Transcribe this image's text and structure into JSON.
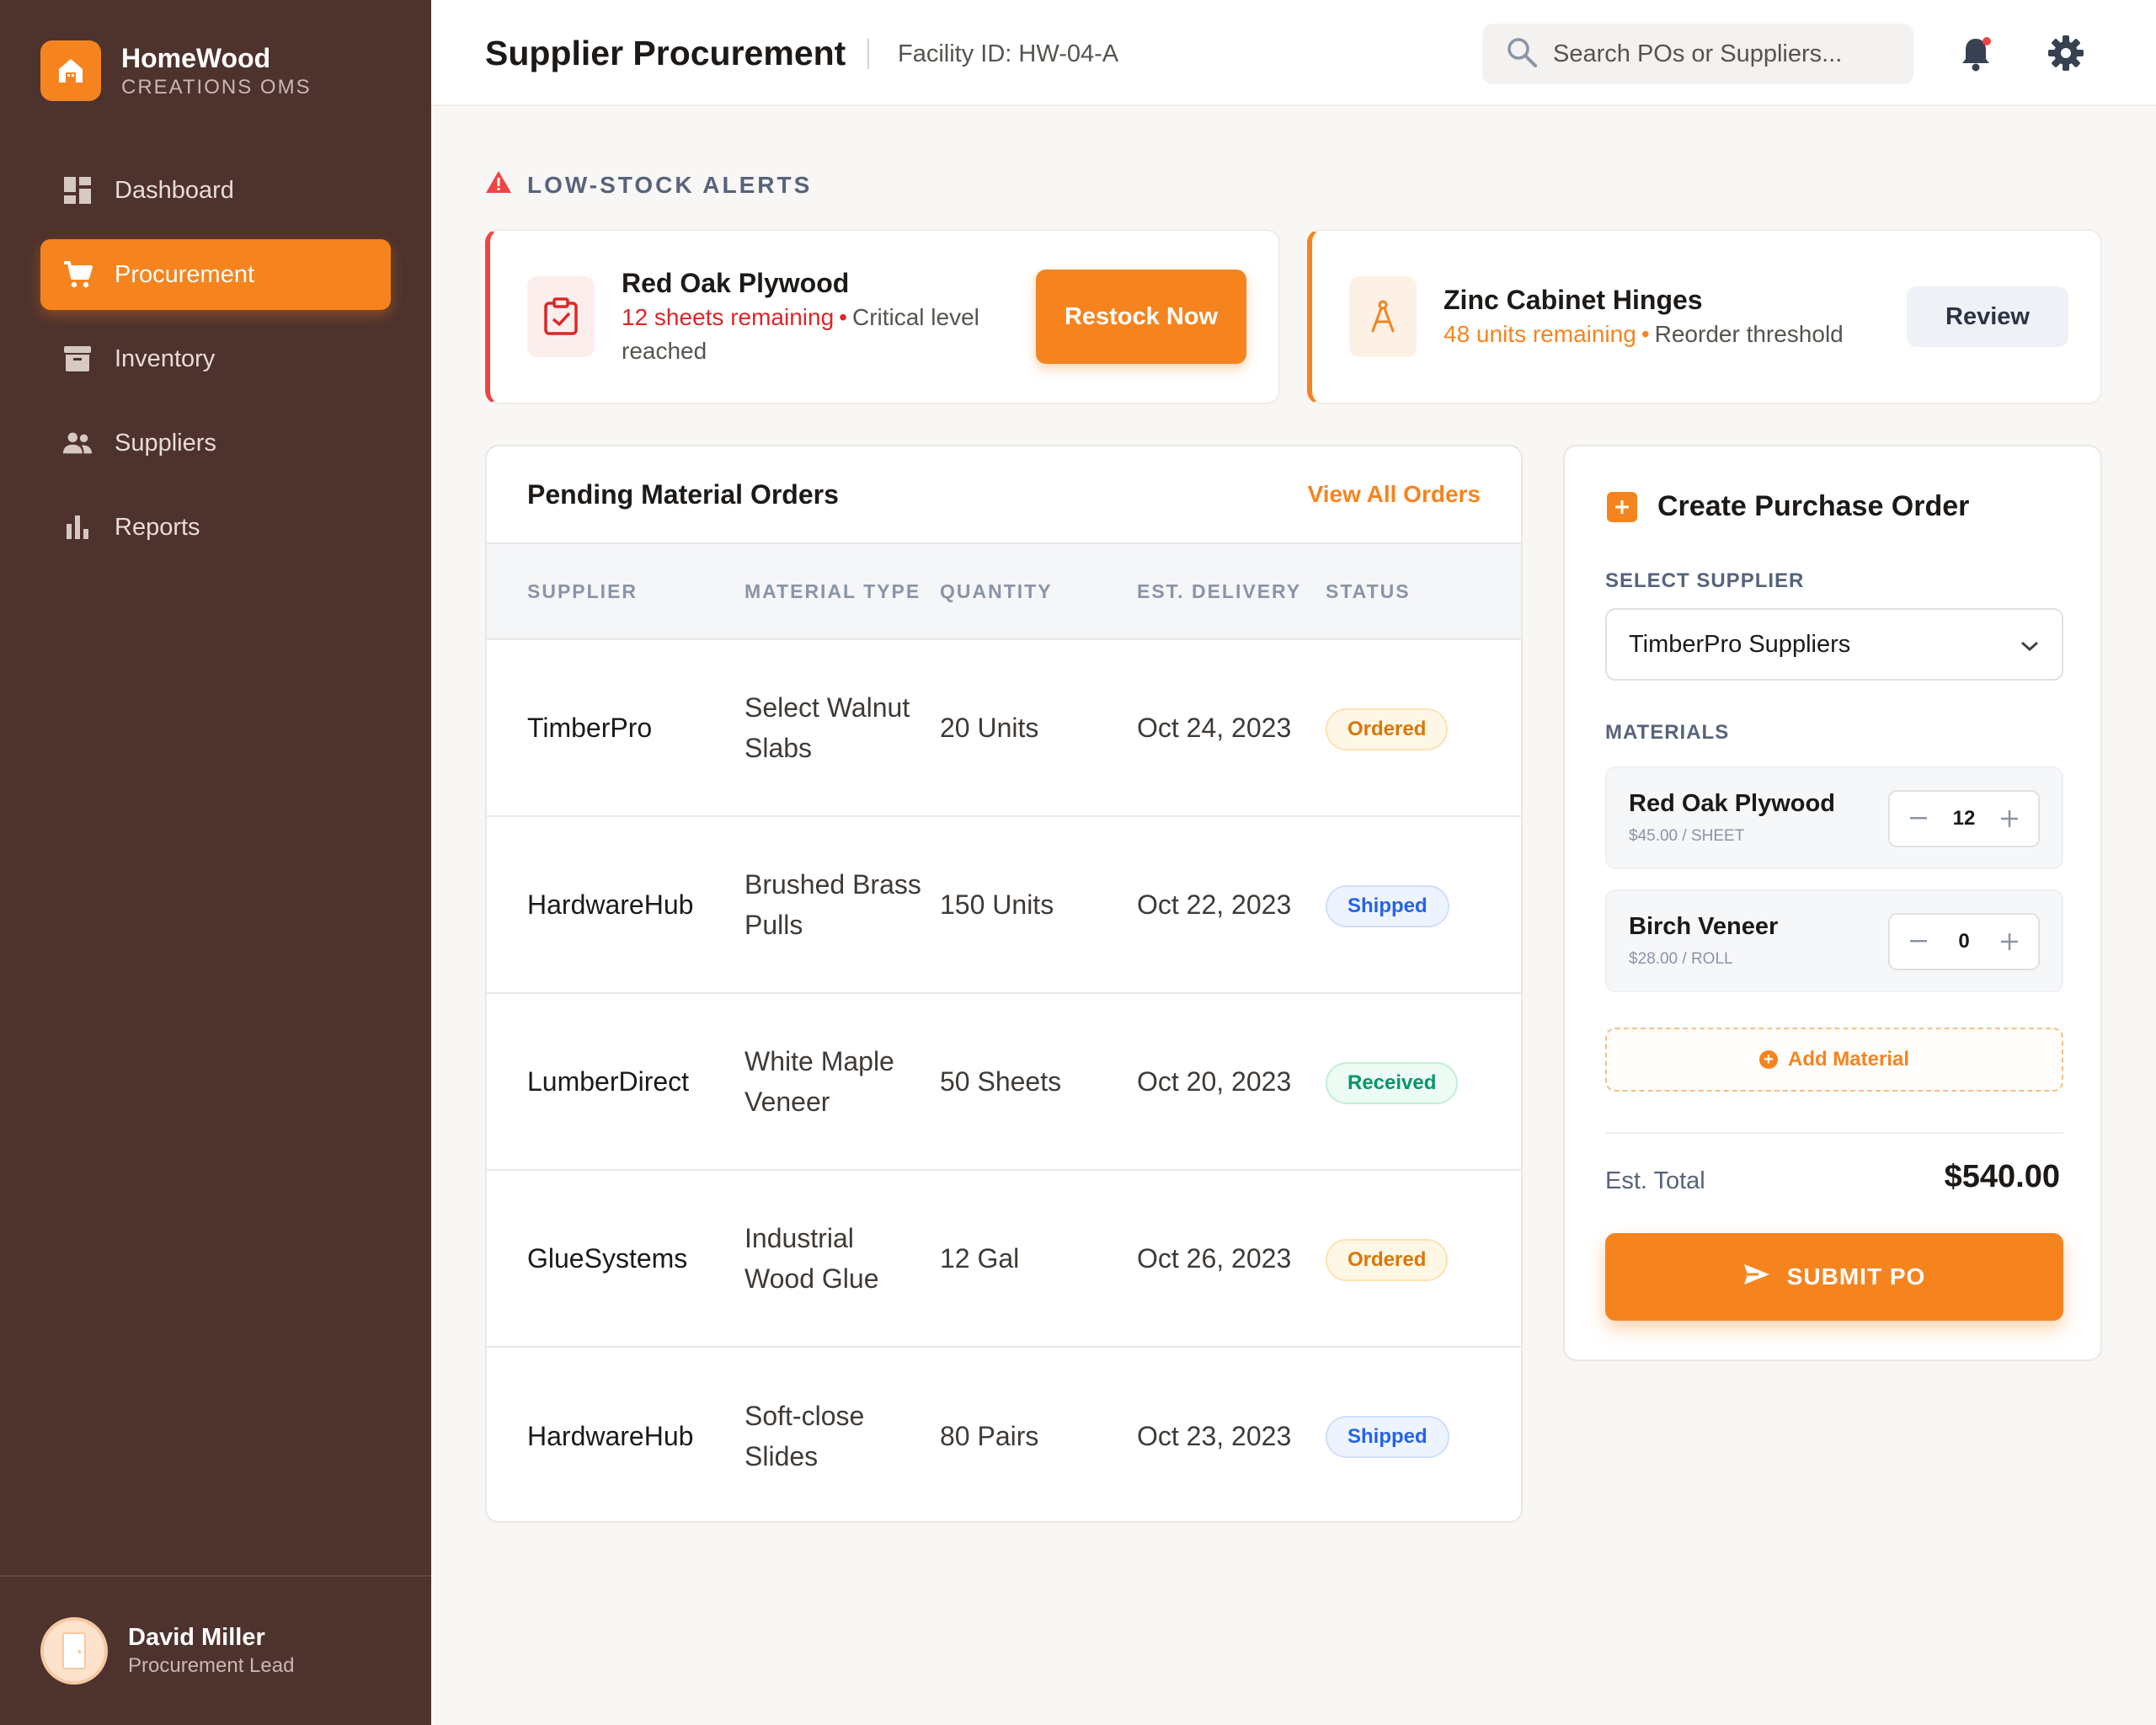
{
  "brand": {
    "name": "HomeWood",
    "subtitle": "CREATIONS OMS"
  },
  "nav": [
    {
      "label": "Dashboard",
      "icon": "dashboard-icon",
      "active": false
    },
    {
      "label": "Procurement",
      "icon": "cart-icon",
      "active": true
    },
    {
      "label": "Inventory",
      "icon": "archive-icon",
      "active": false
    },
    {
      "label": "Suppliers",
      "icon": "people-icon",
      "active": false
    },
    {
      "label": "Reports",
      "icon": "bar-chart-icon",
      "active": false
    }
  ],
  "user": {
    "name": "David Miller",
    "role": "Procurement Lead"
  },
  "header": {
    "title": "Supplier Procurement",
    "facility": "Facility ID: HW-04-A",
    "search_placeholder": "Search POs or Suppliers..."
  },
  "alerts": {
    "label": "LOW-STOCK ALERTS",
    "items": [
      {
        "title": "Red Oak Plywood",
        "highlight": "12 sheets remaining",
        "note": "Critical level reached",
        "action": "Restock Now",
        "severity": "critical",
        "icon": "clipboard-check-icon"
      },
      {
        "title": "Zinc Cabinet Hinges",
        "highlight": "48 units remaining",
        "note": "Reorder threshold",
        "action": "Review",
        "severity": "warning",
        "icon": "compass-icon"
      }
    ]
  },
  "orders": {
    "title": "Pending Material Orders",
    "link": "View All Orders",
    "columns": [
      "SUPPLIER",
      "MATERIAL TYPE",
      "QUANTITY",
      "EST. DELIVERY",
      "STATUS"
    ],
    "rows": [
      {
        "supplier": "TimberPro",
        "material": "Select Walnut Slabs",
        "quantity": "20 Units",
        "delivery": "Oct 24, 2023",
        "status": "Ordered"
      },
      {
        "supplier": "HardwareHub",
        "material": "Brushed Brass Pulls",
        "quantity": "150 Units",
        "delivery": "Oct 22, 2023",
        "status": "Shipped"
      },
      {
        "supplier": "LumberDirect",
        "material": "White Maple Veneer",
        "quantity": "50 Sheets",
        "delivery": "Oct 20, 2023",
        "status": "Received"
      },
      {
        "supplier": "GlueSystems",
        "material": "Industrial Wood Glue",
        "quantity": "12 Gal",
        "delivery": "Oct 26, 2023",
        "status": "Ordered"
      },
      {
        "supplier": "HardwareHub",
        "material": "Soft-close Slides",
        "quantity": "80 Pairs",
        "delivery": "Oct 23, 2023",
        "status": "Shipped"
      }
    ]
  },
  "po": {
    "title": "Create Purchase Order",
    "supplier_label": "SELECT SUPPLIER",
    "supplier_value": "TimberPro Suppliers",
    "materials_label": "MATERIALS",
    "materials": [
      {
        "name": "Red Oak Plywood",
        "price": "$45.00 / SHEET",
        "qty": "12"
      },
      {
        "name": "Birch Veneer",
        "price": "$28.00 / ROLL",
        "qty": "0"
      }
    ],
    "add_label": "Add Material",
    "total_label": "Est. Total",
    "total_value": "$540.00",
    "submit_label": "SUBMIT PO"
  },
  "colors": {
    "accent": "#f5841f",
    "sidebar": "#4e322d",
    "critical": "#ef4444"
  }
}
